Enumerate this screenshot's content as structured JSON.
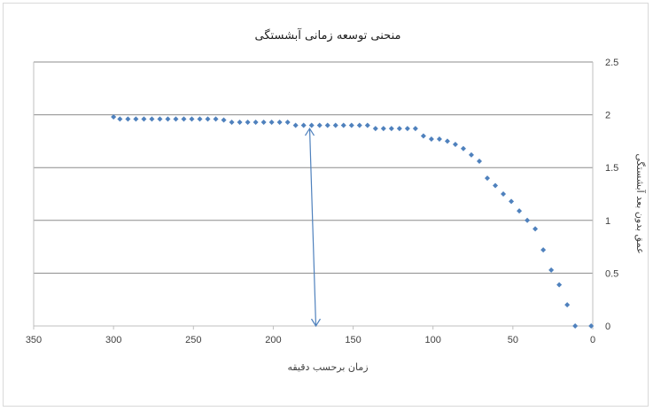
{
  "chart_data": {
    "type": "scatter",
    "title": "منحنی توسعه زمانی آبشستگی",
    "xlabel": "زمان برحسب دقیقه",
    "ylabel": "عمق بدون بعد آبشستگی",
    "xlim": [
      0,
      350
    ],
    "ylim": [
      0,
      2.5
    ],
    "x_reversed": true,
    "y_axis_side": "right",
    "grid": "horizontal",
    "legend": "none",
    "x_ticks": [
      "0",
      "50",
      "100",
      "150",
      "200",
      "250",
      "300",
      "350"
    ],
    "y_ticks": [
      "0",
      "0.5",
      "1",
      "1.5",
      "2",
      "2.5"
    ],
    "marker_color": "#4f81bd",
    "annotation": {
      "type": "double-arrow",
      "x": 175,
      "y_from": 0,
      "y_to": 1.87
    },
    "series": [
      {
        "x": [
          300,
          296,
          291,
          286,
          281,
          276,
          271,
          266,
          261,
          256,
          251,
          246,
          241,
          236,
          231,
          226,
          221,
          216,
          211,
          206,
          201,
          196,
          191,
          186,
          181,
          176,
          171,
          166,
          161,
          156,
          151,
          146,
          141,
          136,
          131,
          126,
          121,
          116,
          111,
          106,
          101,
          96,
          91,
          86,
          81,
          76,
          71,
          66,
          61,
          56,
          51,
          46,
          41,
          36,
          31,
          26,
          21,
          16,
          11,
          1
        ],
        "y": [
          1.98,
          1.96,
          1.96,
          1.96,
          1.96,
          1.96,
          1.96,
          1.96,
          1.96,
          1.96,
          1.96,
          1.96,
          1.96,
          1.96,
          1.95,
          1.93,
          1.93,
          1.93,
          1.93,
          1.93,
          1.93,
          1.93,
          1.93,
          1.9,
          1.9,
          1.9,
          1.9,
          1.9,
          1.9,
          1.9,
          1.9,
          1.9,
          1.9,
          1.87,
          1.87,
          1.87,
          1.87,
          1.87,
          1.87,
          1.8,
          1.77,
          1.77,
          1.75,
          1.72,
          1.68,
          1.62,
          1.56,
          1.4,
          1.33,
          1.25,
          1.18,
          1.09,
          1.0,
          0.92,
          0.72,
          0.53,
          0.39,
          0.2,
          0.0,
          0.0
        ]
      }
    ]
  }
}
